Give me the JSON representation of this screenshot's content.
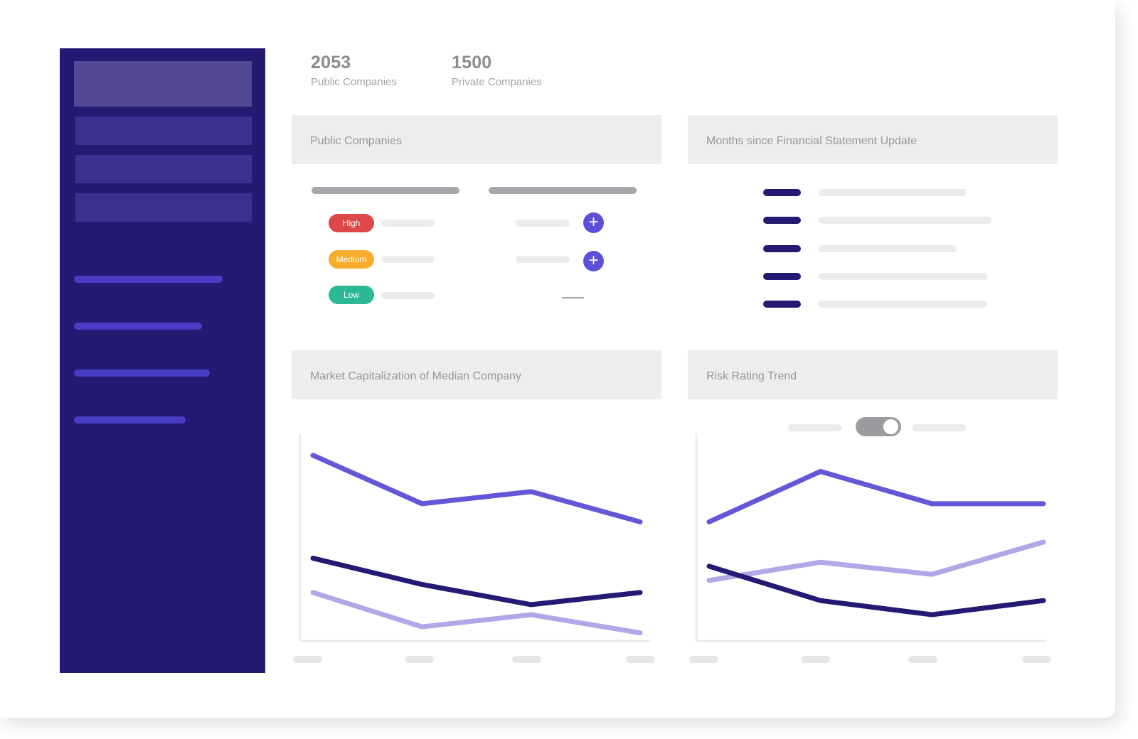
{
  "stats": [
    {
      "value": "2053",
      "label": "Public Companies"
    },
    {
      "value": "1500",
      "label": "Private Companies"
    }
  ],
  "cards": {
    "public_companies": {
      "title": "Public Companies",
      "risk_levels": [
        {
          "label": "High",
          "color": "#dd4748"
        },
        {
          "label": "Medium",
          "color": "#f9ac2d"
        },
        {
          "label": "Low",
          "color": "#2bb991"
        }
      ]
    },
    "months_since_update": {
      "title": "Months since Financial Statement Update"
    },
    "market_cap": {
      "title": "Market Capitalization of Median Company"
    },
    "risk_trend": {
      "title": "Risk Rating Trend"
    }
  },
  "colors": {
    "sidebar": "#241a73",
    "accent": "#5d50d8",
    "series_dark": "#241a73",
    "series_light": "#b0a8e6"
  },
  "chart_data": [
    {
      "type": "line",
      "title": "Market Capitalization of Median Company",
      "x": [
        1,
        2,
        3,
        4
      ],
      "ylim": [
        0,
        100
      ],
      "grid": false,
      "series": [
        {
          "values": [
            92,
            68,
            74,
            59
          ],
          "color": "#6356d7"
        },
        {
          "values": [
            41,
            28,
            18,
            24
          ],
          "color": "#241a73"
        },
        {
          "values": [
            24,
            7,
            13,
            4
          ],
          "color": "#b0a8e6"
        }
      ]
    },
    {
      "type": "line",
      "title": "Risk Rating Trend",
      "x": [
        1,
        2,
        3,
        4
      ],
      "ylim": [
        0,
        100
      ],
      "grid": false,
      "series": [
        {
          "values": [
            59,
            84,
            68,
            68
          ],
          "color": "#6356d7"
        },
        {
          "values": [
            30,
            39,
            33,
            49
          ],
          "color": "#b0a8e6"
        },
        {
          "values": [
            37,
            20,
            13,
            20
          ],
          "color": "#241a73"
        }
      ]
    }
  ]
}
